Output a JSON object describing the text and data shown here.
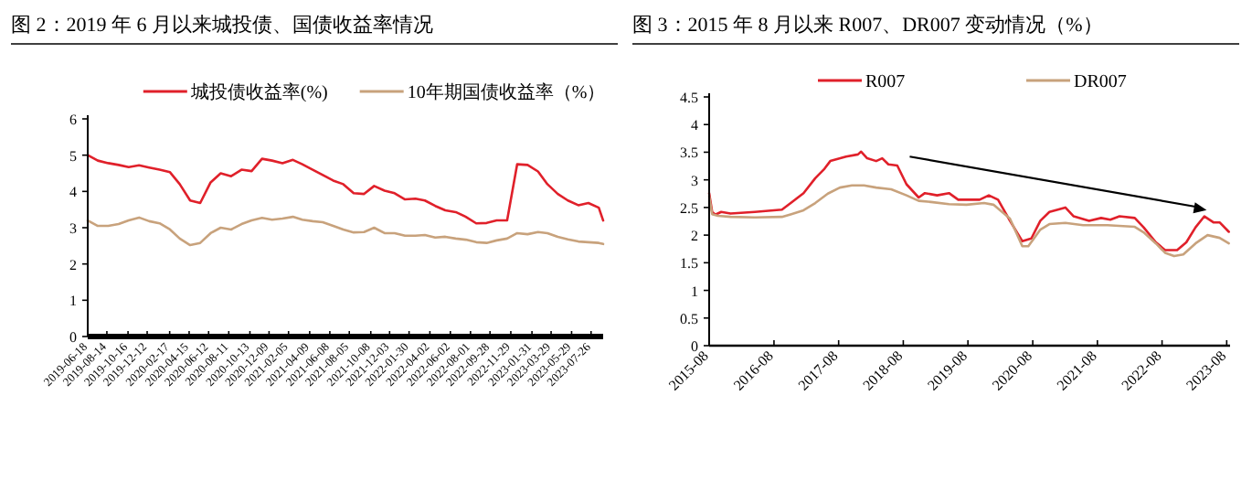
{
  "chart_data": [
    {
      "type": "line",
      "title": "图 2：2019 年 6 月以来城投债、国债收益率情况",
      "legend": "top",
      "grid": false,
      "x": [
        "2019-06-18",
        "2019-07-18",
        "2019-08-18",
        "2019-09-18",
        "2019-10-18",
        "2019-11-18",
        "2019-12-18",
        "2020-01-18",
        "2020-02-18",
        "2020-03-18",
        "2020-04-18",
        "2020-05-18",
        "2020-06-18",
        "2020-07-18",
        "2020-08-18",
        "2020-09-18",
        "2020-10-18",
        "2020-11-18",
        "2020-12-18",
        "2021-01-18",
        "2021-02-18",
        "2021-03-18",
        "2021-04-18",
        "2021-05-18",
        "2021-06-18",
        "2021-07-18",
        "2021-08-18",
        "2021-09-18",
        "2021-10-18",
        "2021-11-18",
        "2021-12-18",
        "2022-01-18",
        "2022-02-18",
        "2022-03-18",
        "2022-04-18",
        "2022-05-18",
        "2022-06-18",
        "2022-07-18",
        "2022-08-18",
        "2022-09-18",
        "2022-10-18",
        "2022-11-18",
        "2022-12-18",
        "2023-01-18",
        "2023-02-18",
        "2023-03-18",
        "2023-04-18",
        "2023-05-18",
        "2023-06-18",
        "2023-07-18",
        "2023-08-18",
        "2023-08-31"
      ],
      "series": [
        {
          "name": "城投债收益率(%)",
          "color": "#e0202a",
          "values": [
            5.0,
            4.85,
            4.78,
            4.73,
            4.67,
            4.72,
            4.66,
            4.6,
            4.53,
            4.2,
            3.75,
            3.68,
            4.25,
            4.5,
            4.42,
            4.6,
            4.56,
            4.9,
            4.85,
            4.78,
            4.87,
            4.75,
            4.6,
            4.45,
            4.3,
            4.2,
            3.95,
            3.93,
            4.15,
            4.02,
            3.95,
            3.78,
            3.8,
            3.75,
            3.6,
            3.48,
            3.43,
            3.3,
            3.12,
            3.13,
            3.2,
            3.2,
            4.75,
            4.73,
            4.55,
            4.2,
            3.93,
            3.75,
            3.62,
            3.68,
            3.55,
            3.2
          ]
        },
        {
          "name": "10年期国债收益率（%）",
          "color": "#c8a27c",
          "values": [
            3.2,
            3.05,
            3.05,
            3.1,
            3.2,
            3.28,
            3.18,
            3.12,
            2.95,
            2.7,
            2.52,
            2.58,
            2.85,
            3.0,
            2.95,
            3.1,
            3.2,
            3.27,
            3.22,
            3.25,
            3.3,
            3.22,
            3.18,
            3.15,
            3.05,
            2.95,
            2.87,
            2.88,
            3.0,
            2.85,
            2.85,
            2.78,
            2.78,
            2.8,
            2.73,
            2.75,
            2.7,
            2.67,
            2.6,
            2.58,
            2.65,
            2.7,
            2.85,
            2.82,
            2.88,
            2.85,
            2.75,
            2.68,
            2.62,
            2.6,
            2.58,
            2.55
          ]
        }
      ],
      "xlim": [
        "2019-06-18",
        "2023-08-31"
      ],
      "xticks": [
        "2019-06-18",
        "2019-08-14",
        "2019-10-16",
        "2019-12-12",
        "2020-02-17",
        "2020-04-15",
        "2020-06-12",
        "2020-08-11",
        "2020-10-13",
        "2020-12-09",
        "2021-02-05",
        "2021-04-09",
        "2021-06-08",
        "2021-08-05",
        "2021-10-08",
        "2021-12-03",
        "2022-01-30",
        "2022-04-02",
        "2022-06-02",
        "2022-08-01",
        "2022-09-28",
        "2022-11-29",
        "2023-01-31",
        "2023-03-29",
        "2023-05-29",
        "2023-07-26"
      ],
      "ylim": [
        0,
        6
      ],
      "yticks": [
        0,
        1,
        2,
        3,
        4,
        5,
        6
      ]
    },
    {
      "type": "line",
      "title": "图 3：2015 年 8 月以来 R007、DR007 变动情况（%）",
      "legend": "top",
      "grid": false,
      "series": [
        {
          "name": "R007",
          "color": "#e0202a",
          "x": [
            "2015-08-01",
            "2015-08-18",
            "2015-09-05",
            "2015-10-08",
            "2015-11-30",
            "2016-04-15",
            "2016-09-15",
            "2016-11-07",
            "2017-01-15",
            "2017-03-22",
            "2017-05-13",
            "2017-06-15",
            "2017-09-12",
            "2017-11-18",
            "2017-12-06",
            "2018-01-09",
            "2018-03-01",
            "2018-04-04",
            "2018-05-09",
            "2018-06-28",
            "2018-08-19",
            "2018-10-27",
            "2018-12-01",
            "2019-02-08",
            "2019-04-16",
            "2019-06-07",
            "2019-10-06",
            "2019-11-27",
            "2020-01-18",
            "2020-03-25",
            "2020-06-03",
            "2020-07-24",
            "2020-09-13",
            "2020-11-03",
            "2021-02-01",
            "2021-03-20",
            "2021-06-15",
            "2021-08-22",
            "2021-10-13",
            "2021-12-04",
            "2022-02-28",
            "2022-04-19",
            "2022-06-27",
            "2022-08-18",
            "2022-10-25",
            "2022-12-16",
            "2023-02-06",
            "2023-03-28",
            "2023-05-18",
            "2023-06-22",
            "2023-08-13"
          ],
          "values": [
            2.76,
            2.42,
            2.37,
            2.42,
            2.39,
            2.42,
            2.46,
            2.59,
            2.76,
            3.03,
            3.2,
            3.34,
            3.42,
            3.46,
            3.51,
            3.39,
            3.34,
            3.39,
            3.28,
            3.26,
            2.92,
            2.68,
            2.76,
            2.72,
            2.76,
            2.64,
            2.64,
            2.72,
            2.64,
            2.26,
            1.89,
            1.94,
            2.26,
            2.42,
            2.5,
            2.34,
            2.26,
            2.31,
            2.28,
            2.34,
            2.31,
            2.14,
            1.87,
            1.73,
            1.73,
            1.87,
            2.14,
            2.34,
            2.23,
            2.23,
            2.06
          ]
        },
        {
          "name": "DR007",
          "color": "#c8a27c",
          "x": [
            "2015-08-01",
            "2015-08-18",
            "2015-09-20",
            "2015-11-30",
            "2016-04-15",
            "2016-09-15",
            "2016-11-07",
            "2017-01-15",
            "2017-03-22",
            "2017-06-01",
            "2017-08-08",
            "2017-10-15",
            "2017-12-22",
            "2018-03-01",
            "2018-05-25",
            "2018-08-19",
            "2018-10-27",
            "2019-01-04",
            "2019-04-16",
            "2019-07-24",
            "2019-10-31",
            "2019-12-23",
            "2020-03-25",
            "2020-06-03",
            "2020-07-07",
            "2020-09-13",
            "2020-11-03",
            "2021-02-01",
            "2021-05-12",
            "2021-09-27",
            "2022-02-28",
            "2022-04-19",
            "2022-06-27",
            "2022-08-18",
            "2022-10-08",
            "2022-11-29",
            "2023-02-06",
            "2023-04-15",
            "2023-06-22",
            "2023-08-13"
          ],
          "values": [
            2.7,
            2.38,
            2.35,
            2.33,
            2.32,
            2.33,
            2.38,
            2.45,
            2.58,
            2.75,
            2.86,
            2.9,
            2.9,
            2.86,
            2.83,
            2.72,
            2.62,
            2.6,
            2.56,
            2.55,
            2.58,
            2.55,
            2.3,
            1.8,
            1.8,
            2.1,
            2.2,
            2.22,
            2.18,
            2.18,
            2.15,
            2.05,
            1.85,
            1.68,
            1.62,
            1.65,
            1.85,
            2.0,
            1.95,
            1.85
          ]
        }
      ],
      "xlim": [
        "2015-08-01",
        "2023-08-20"
      ],
      "xticks": [
        "2015-08",
        "2016-08",
        "2017-08",
        "2018-08",
        "2019-08",
        "2020-08",
        "2021-08",
        "2022-08",
        "2023-08"
      ],
      "ylim": [
        0,
        4.5
      ],
      "yticks": [
        0,
        0.5,
        1,
        1.5,
        2,
        2.5,
        3,
        3.5,
        4,
        4.5
      ]
    }
  ]
}
